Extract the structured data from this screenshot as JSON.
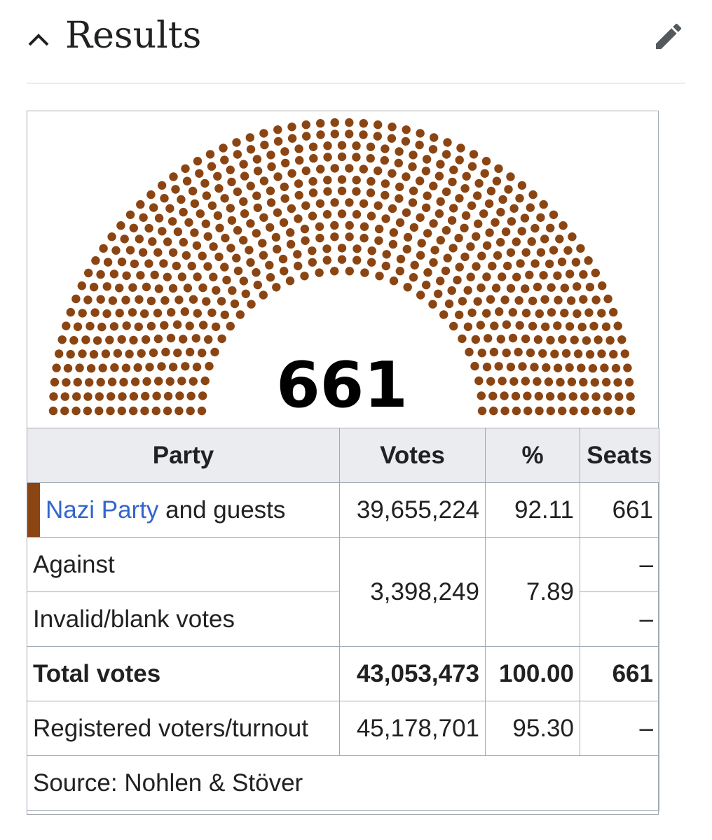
{
  "header": {
    "title": "Results"
  },
  "icons": {
    "collapse": "chevron-up-icon",
    "edit": "pencil-icon"
  },
  "colors": {
    "party": "#8b4513",
    "link": "#3366cc",
    "header_bg": "#eaecf0",
    "border": "#a2a9b1"
  },
  "chart_data": {
    "type": "parliament",
    "total_seats": 661,
    "center_label": "661",
    "series": [
      {
        "name": "Nazi Party and guests",
        "seats": 661,
        "color": "#8b4513"
      }
    ]
  },
  "table": {
    "columns": [
      "Party",
      "Votes",
      "%",
      "Seats"
    ],
    "row_party": {
      "link_text": "Nazi Party",
      "rest_text": " and guests",
      "votes": "39,655,224",
      "pct": "92.11",
      "seats": "661"
    },
    "row_against": {
      "label": "Against",
      "seats": "–"
    },
    "row_invalid": {
      "label": "Invalid/blank votes",
      "seats": "–"
    },
    "against_invalid_shared": {
      "votes": "3,398,249",
      "pct": "7.89"
    },
    "row_total": {
      "label": "Total votes",
      "votes": "43,053,473",
      "pct": "100.00",
      "seats": "661"
    },
    "row_registered": {
      "label": "Registered voters/turnout",
      "votes": "45,178,701",
      "pct": "95.30",
      "seats": "–"
    },
    "source": "Source: Nohlen & Stöver"
  }
}
